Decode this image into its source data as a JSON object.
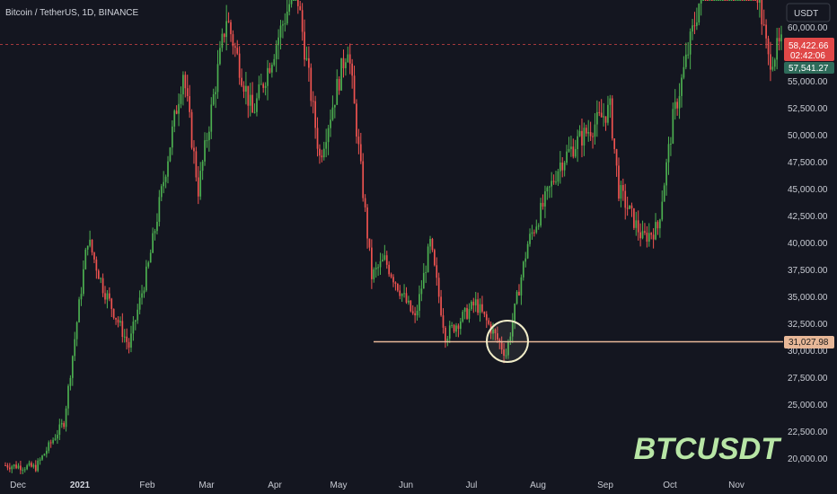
{
  "header": {
    "title": "Bitcoin / TetherUS, 1D, BINANCE"
  },
  "currency_button": {
    "label": "USDT"
  },
  "watermark": "BTCUSDT",
  "price_axis": {
    "ticks": [
      "60,000.00",
      "55,000.00",
      "52,500.00",
      "50,000.00",
      "47,500.00",
      "45,000.00",
      "42,500.00",
      "40,000.00",
      "37,500.00",
      "35,000.00",
      "32,500.00",
      "30,000.00",
      "27,500.00",
      "25,000.00",
      "22,500.00",
      "20,000.00"
    ],
    "current_price": "58,422.66",
    "countdown": "02:42:06",
    "prev_close": "57,541.27",
    "support_price": "31,027.98"
  },
  "time_axis": {
    "labels": [
      "Dec",
      "2021",
      "Feb",
      "Mar",
      "Apr",
      "May",
      "Jun",
      "Jul",
      "Aug",
      "Sep",
      "Oct",
      "Nov"
    ]
  },
  "colors": {
    "background": "#141620",
    "up": "#26a69a",
    "up_bright": "#4caf50",
    "down": "#ef5350",
    "support_line": "#e8b898",
    "circle": "#f0ecc8",
    "price_tag": "#e04848",
    "prev_close_tag": "#2e6b5a",
    "support_tag": "#e8b898"
  },
  "chart_data": {
    "type": "candlestick",
    "symbol": "BTCUSDT",
    "timeframe": "1D",
    "exchange": "BINANCE",
    "title": "Bitcoin / TetherUS, 1D, BINANCE",
    "ylim": [
      19000,
      62000
    ],
    "yticks": [
      20000,
      22500,
      25000,
      27500,
      30000,
      32500,
      35000,
      37500,
      40000,
      42500,
      45000,
      47500,
      50000,
      52500,
      55000,
      57500,
      60000
    ],
    "x_labels": [
      "Dec",
      "2021",
      "Feb",
      "Mar",
      "Apr",
      "May",
      "Jun",
      "Jul",
      "Aug",
      "Sep",
      "Oct",
      "Nov"
    ],
    "current_price": 58422.66,
    "prev_close": 57541.27,
    "support_level": 31027.98,
    "key_points": [
      {
        "x": "2020-12-01",
        "y": 19500
      },
      {
        "x": "2020-12-15",
        "y": 19300
      },
      {
        "x": "2020-12-28",
        "y": 23500
      },
      {
        "x": "2021-01-08",
        "y": 40500
      },
      {
        "x": "2021-01-15",
        "y": 36000
      },
      {
        "x": "2021-01-27",
        "y": 30500
      },
      {
        "x": "2021-02-05",
        "y": 38000
      },
      {
        "x": "2021-02-21",
        "y": 56000
      },
      {
        "x": "2021-02-28",
        "y": 45000
      },
      {
        "x": "2021-03-13",
        "y": 61000
      },
      {
        "x": "2021-03-25",
        "y": 52000
      },
      {
        "x": "2021-04-14",
        "y": 64000
      },
      {
        "x": "2021-04-25",
        "y": 48000
      },
      {
        "x": "2021-05-08",
        "y": 58500
      },
      {
        "x": "2021-05-19",
        "y": 37000
      },
      {
        "x": "2021-05-25",
        "y": 38500
      },
      {
        "x": "2021-06-08",
        "y": 33000
      },
      {
        "x": "2021-06-15",
        "y": 40000
      },
      {
        "x": "2021-06-22",
        "y": 31500
      },
      {
        "x": "2021-07-06",
        "y": 34500
      },
      {
        "x": "2021-07-20",
        "y": 29800
      },
      {
        "x": "2021-07-30",
        "y": 40000
      },
      {
        "x": "2021-08-14",
        "y": 47500
      },
      {
        "x": "2021-08-22",
        "y": 49500
      },
      {
        "x": "2021-09-06",
        "y": 52500
      },
      {
        "x": "2021-09-10",
        "y": 45000
      },
      {
        "x": "2021-09-21",
        "y": 40500
      },
      {
        "x": "2021-09-28",
        "y": 41500
      },
      {
        "x": "2021-10-05",
        "y": 51500
      },
      {
        "x": "2021-10-20",
        "y": 65000
      },
      {
        "x": "2021-11-10",
        "y": 67500
      },
      {
        "x": "2021-11-18",
        "y": 57000
      },
      {
        "x": "2021-11-24",
        "y": 58400
      }
    ]
  }
}
